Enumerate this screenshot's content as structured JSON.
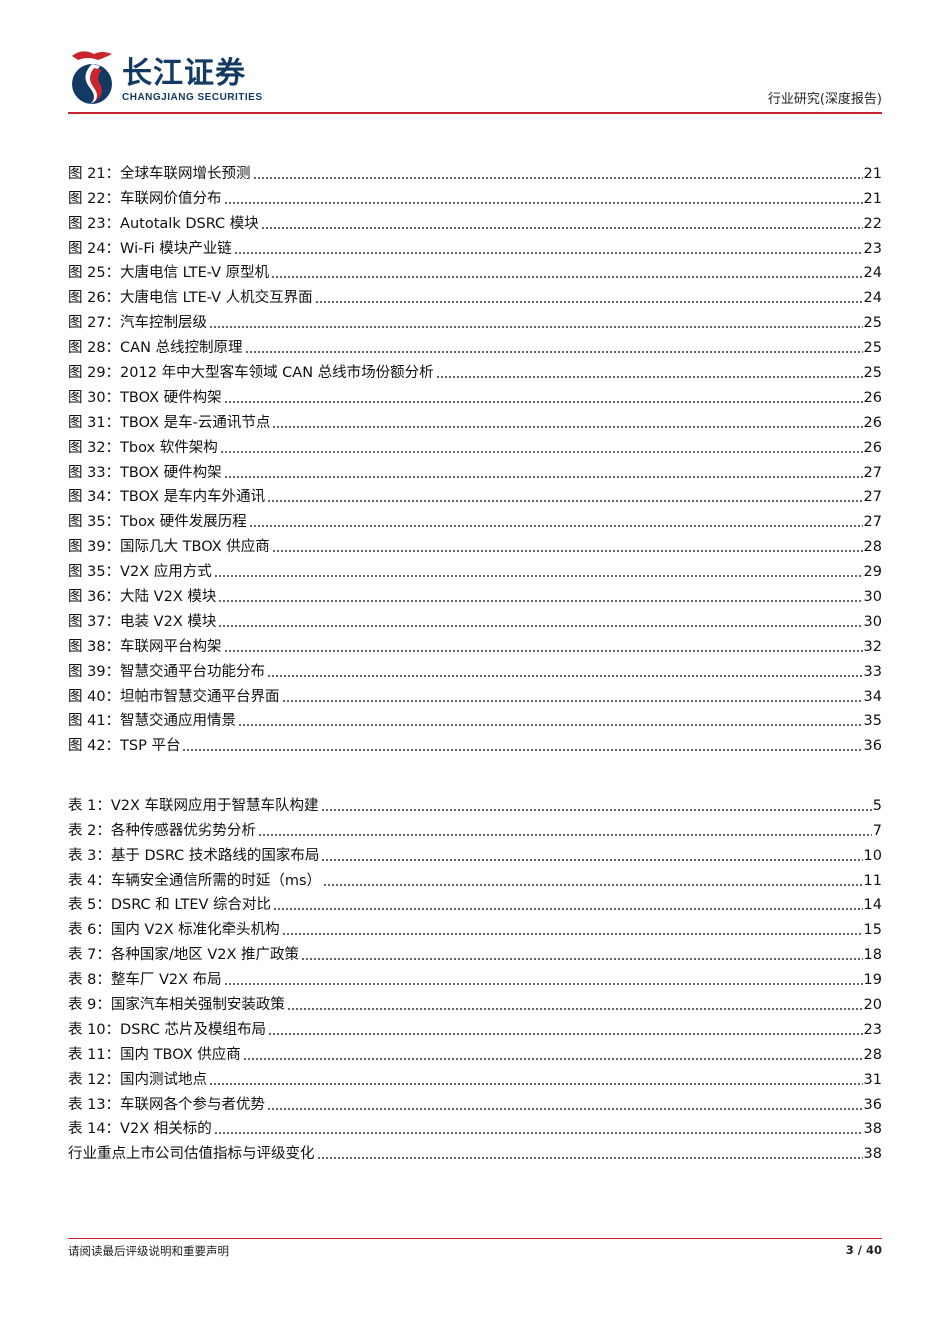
{
  "header": {
    "logo_cn": "长江证券",
    "logo_en": "CHANGJIANG SECURITIES",
    "report_type": "行业研究(深度报告)"
  },
  "figures": [
    {
      "label": "图 21：全球车联网增长预测",
      "page": "21"
    },
    {
      "label": "图 22：车联网价值分布",
      "page": "21"
    },
    {
      "label": "图  23：Autotalk DSRC 模块",
      "page": "22"
    },
    {
      "label": "图  24：Wi-Fi 模块产业链",
      "page": "23"
    },
    {
      "label": "图 25：大唐电信 LTE-V 原型机",
      "page": "24"
    },
    {
      "label": "图 26：大唐电信 LTE-V 人机交互界面",
      "page": "24"
    },
    {
      "label": "图 27：汽车控制层级",
      "page": "25"
    },
    {
      "label": "图 28：CAN 总线控制原理",
      "page": "25"
    },
    {
      "label": "图 29：2012 年中大型客车领域 CAN 总线市场份额分析",
      "page": "25"
    },
    {
      "label": "图 30：TBOX 硬件构架",
      "page": "26"
    },
    {
      "label": "图 31：TBOX 是车-云通讯节点",
      "page": "26"
    },
    {
      "label": "图  32：Tbox 软件架构",
      "page": "26"
    },
    {
      "label": "图 33：TBOX 硬件构架",
      "page": "27"
    },
    {
      "label": "图 34：TBOX 是车内车外通讯",
      "page": "27"
    },
    {
      "label": "图  35：Tbox 硬件发展历程",
      "page": "27"
    },
    {
      "label": "图  39：国际几大 TBOX 供应商",
      "page": "28"
    },
    {
      "label": "图  35：V2X 应用方式",
      "page": "29"
    },
    {
      "label": "图  36：大陆 V2X 模块",
      "page": "30"
    },
    {
      "label": "图  37：电装 V2X 模块",
      "page": "30"
    },
    {
      "label": "图  38：车联网平台构架",
      "page": "32"
    },
    {
      "label": "图  39：智慧交通平台功能分布",
      "page": "33"
    },
    {
      "label": "图  40：坦帕市智慧交通平台界面",
      "page": "34"
    },
    {
      "label": "图  41：智慧交通应用情景",
      "page": "35"
    },
    {
      "label": "图  42：TSP 平台",
      "page": "36"
    }
  ],
  "tables": [
    {
      "label": "表 1：V2X 车联网应用于智慧车队构建",
      "page": "5"
    },
    {
      "label": "表  2：各种传感器优劣势分析",
      "page": "7"
    },
    {
      "label": "表 3：基于 DSRC 技术路线的国家布局",
      "page": "10"
    },
    {
      "label": "表  4：车辆安全通信所需的时延（ms）",
      "page": "11"
    },
    {
      "label": "表  5：DSRC 和 LTEV 综合对比",
      "page": "14"
    },
    {
      "label": "表  6：国内 V2X 标准化牵头机构",
      "page": "15"
    },
    {
      "label": "表 7：各种国家/地区 V2X 推广政策",
      "page": "18"
    },
    {
      "label": "表 8：整车厂 V2X 布局",
      "page": "19"
    },
    {
      "label": "表  9：国家汽车相关强制安装政策",
      "page": "20"
    },
    {
      "label": "表  10：DSRC 芯片及模组布局",
      "page": "23"
    },
    {
      "label": "表 11：国内 TBOX 供应商",
      "page": "28"
    },
    {
      "label": "表 12：国内测试地点",
      "page": "31"
    },
    {
      "label": "表 13：车联网各个参与者优势",
      "page": "36"
    },
    {
      "label": "表 14：V2X 相关标的",
      "page": "38"
    },
    {
      "label": "行业重点上市公司估值指标与评级变化",
      "page": "38"
    }
  ],
  "footer": {
    "disclaimer": "请阅读最后评级说明和重要声明",
    "page_number": "3 / 40"
  },
  "colors": {
    "brand_navy": "#123a63",
    "brand_red": "#c9252c"
  }
}
